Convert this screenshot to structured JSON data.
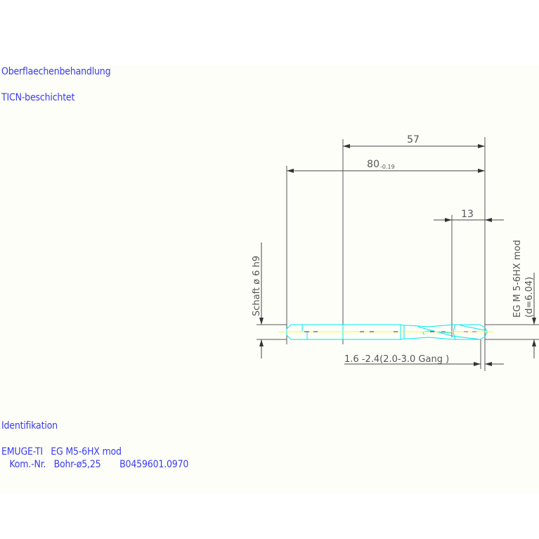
{
  "notes": {
    "surface_heading": "Oberflaechenbehandlung",
    "surface_value": "TICN-beschichtet",
    "ident_heading": "Identifikation",
    "ident_line1": "EMUGE-TI   EG M5-6HX mod",
    "ident_line2": "   Kom.-Nr.   Bohr-ø5,25       B0459601.0970"
  },
  "dimensions": {
    "dim_57": "57",
    "dim_80": "80",
    "dim_80_tol": "-0.19",
    "dim_13": "13",
    "shank": "Schaft  ø 6  h9",
    "thread": "EG M 5-6HX mod",
    "thread_d": "(d=6.04)",
    "chamfer": "1.6 -2.4(2.0-3.0 Gang  )"
  },
  "colors": {
    "text": "#3a3af0",
    "outline": "#00e5ee",
    "centerline": "#ffff00",
    "dimension": "#555555",
    "hidden": "#ff3030"
  }
}
